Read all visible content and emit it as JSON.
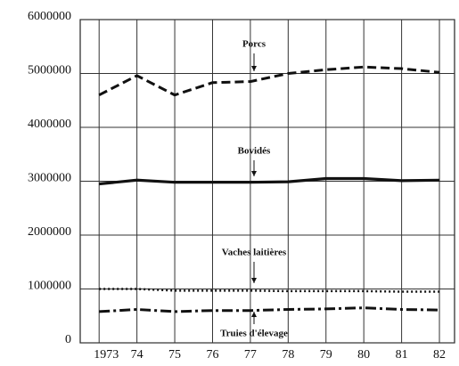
{
  "chart_data": {
    "type": "line",
    "x": [
      1973,
      1974,
      1975,
      1976,
      1977,
      1978,
      1979,
      1980,
      1981,
      1982
    ],
    "series": [
      {
        "name": "Porcs",
        "color": "#111",
        "style": "dashed",
        "values": [
          4600000,
          4960000,
          4600000,
          4830000,
          4850000,
          5000000,
          5070000,
          5120000,
          5090000,
          5020000
        ]
      },
      {
        "name": "Bovidés",
        "color": "#111",
        "style": "solid",
        "values": [
          2950000,
          3020000,
          2980000,
          2980000,
          2980000,
          2990000,
          3050000,
          3050000,
          3010000,
          3020000
        ]
      },
      {
        "name": "Vaches laitières",
        "color": "#111",
        "style": "dotted",
        "values": [
          1000000,
          1000000,
          970000,
          970000,
          970000,
          960000,
          960000,
          960000,
          950000,
          950000
        ]
      },
      {
        "name": "Truies d'élevage",
        "color": "#111",
        "style": "dashdot",
        "values": [
          580000,
          620000,
          580000,
          600000,
          600000,
          620000,
          630000,
          650000,
          620000,
          610000
        ]
      }
    ],
    "xlim": [
      1972.5,
      1982.4
    ],
    "xticks": [
      1973,
      {
        "value": 1974,
        "label": "74"
      },
      {
        "value": 1975,
        "label": "75"
      },
      {
        "value": 1976,
        "label": "76"
      },
      {
        "value": 1977,
        "label": "77"
      },
      {
        "value": 1978,
        "label": "78"
      },
      {
        "value": 1979,
        "label": "79"
      },
      {
        "value": 1980,
        "label": "80"
      },
      {
        "value": 1981,
        "label": "81"
      },
      {
        "value": 1982,
        "label": "82"
      }
    ],
    "ylim": [
      0,
      6000000
    ],
    "yticks": [
      0,
      1000000,
      2000000,
      3000000,
      4000000,
      5000000,
      6000000
    ],
    "grid": true
  }
}
